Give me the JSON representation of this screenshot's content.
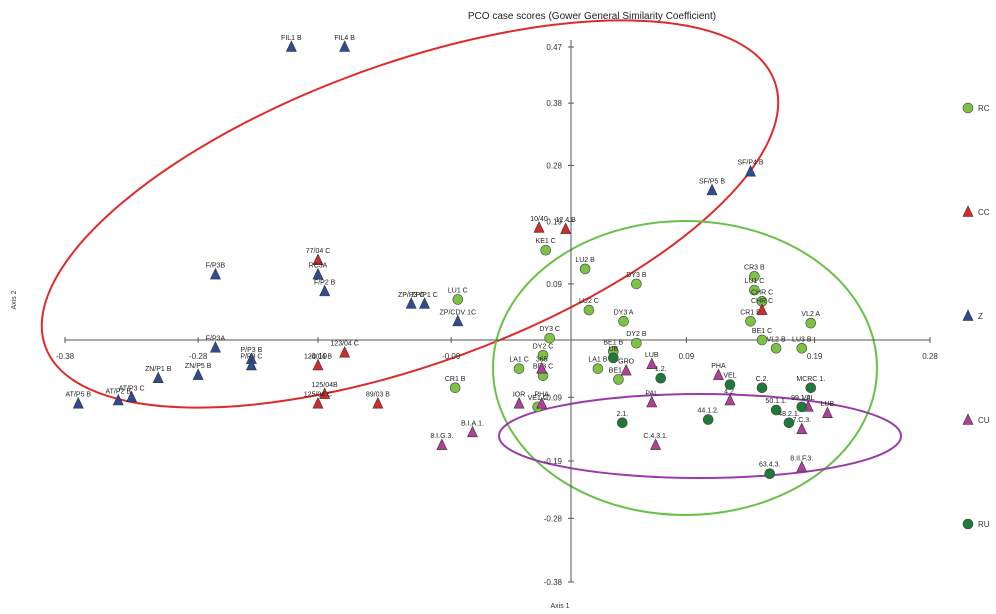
{
  "chart_data": {
    "type": "scatter",
    "title": "PCO case scores (Gower General Similarity Coefficient)",
    "xlabel": "Axis 1",
    "ylabel": "Axis 2",
    "xlim": [
      -0.38,
      0.28
    ],
    "ylim": [
      -0.38,
      0.47
    ],
    "x_ticks": [
      "-0.38",
      "-0.28",
      "-0.19",
      "-0.09",
      "0.09",
      "0.19",
      "0.28"
    ],
    "y_ticks": [
      "0.47",
      "0.38",
      "0.28",
      "0.19",
      "0.09",
      "-0.09",
      "-0.19",
      "-0.28",
      "-0.38"
    ],
    "grid": false,
    "legend_position": "right",
    "series": [
      {
        "name": "RC",
        "shape": "circle",
        "color": "#7cc243",
        "points": [
          {
            "x": -0.019,
            "y": 0.144,
            "label": "KE1 C"
          },
          {
            "x": 0.011,
            "y": 0.114,
            "label": "LU2 B"
          },
          {
            "x": 0.051,
            "y": 0.09,
            "label": "DY3 B"
          },
          {
            "x": 0.143,
            "y": 0.102,
            "label": "CR3 B"
          },
          {
            "x": 0.143,
            "y": 0.08,
            "label": "LU1 C"
          },
          {
            "x": 0.014,
            "y": 0.048,
            "label": "LU2 C"
          },
          {
            "x": 0.041,
            "y": 0.03,
            "label": "DY3 A"
          },
          {
            "x": 0.149,
            "y": 0.062,
            "label": "CHR C"
          },
          {
            "x": 0.14,
            "y": 0.03,
            "label": "CR1 B"
          },
          {
            "x": 0.187,
            "y": 0.027,
            "label": "VL2 A"
          },
          {
            "x": -0.016,
            "y": 0.003,
            "label": "DY3 C"
          },
          {
            "x": -0.021,
            "y": -0.024,
            "label": "DY2 C"
          },
          {
            "x": 0.051,
            "y": -0.005,
            "label": "DY2 B"
          },
          {
            "x": 0.033,
            "y": -0.018,
            "label": "BE1 B"
          },
          {
            "x": 0.149,
            "y": 0.0,
            "label": "BE1 C"
          },
          {
            "x": 0.16,
            "y": -0.013,
            "label": "VL2 B"
          },
          {
            "x": 0.18,
            "y": -0.013,
            "label": "LU3 B"
          },
          {
            "x": -0.039,
            "y": -0.045,
            "label": "LA1 C"
          },
          {
            "x": -0.021,
            "y": -0.056,
            "label": "BE3 C"
          },
          {
            "x": 0.037,
            "y": -0.062,
            "label": "BE1 A"
          },
          {
            "x": 0.021,
            "y": -0.045,
            "label": "LA1 B"
          },
          {
            "x": -0.025,
            "y": -0.105,
            "label": "VE1 C"
          },
          {
            "x": -0.087,
            "y": -0.075,
            "label": "CR1 B"
          },
          {
            "x": -0.085,
            "y": 0.065,
            "label": "LU1 C"
          }
        ]
      },
      {
        "name": "CC",
        "shape": "triangle",
        "color": "#d42a2a",
        "points": [
          {
            "x": -0.004,
            "y": 0.178,
            "label": "12.4 B"
          },
          {
            "x": -0.024,
            "y": 0.18,
            "label": "10/40"
          },
          {
            "x": 0.149,
            "y": 0.048,
            "label": "CHR C"
          },
          {
            "x": -0.19,
            "y": 0.128,
            "label": "77/04 C"
          },
          {
            "x": -0.17,
            "y": -0.02,
            "label": "123/04 C"
          },
          {
            "x": -0.19,
            "y": -0.04,
            "label": "124/04 B"
          },
          {
            "x": -0.185,
            "y": -0.085,
            "label": "125/04B"
          },
          {
            "x": -0.19,
            "y": -0.1,
            "label": "125/04 C"
          },
          {
            "x": -0.145,
            "y": -0.1,
            "label": "89/03 B"
          }
        ]
      },
      {
        "name": "Z",
        "shape": "triangle",
        "color": "#2e4b94",
        "points": [
          {
            "x": -0.21,
            "y": 0.47,
            "label": "FIL1 B"
          },
          {
            "x": -0.17,
            "y": 0.47,
            "label": "FIL4 B"
          },
          {
            "x": 0.11,
            "y": 0.24,
            "label": "SF/P5 B"
          },
          {
            "x": 0.14,
            "y": 0.27,
            "label": "SF/P4 B"
          },
          {
            "x": -0.267,
            "y": 0.105,
            "label": "F/P3B"
          },
          {
            "x": -0.19,
            "y": 0.105,
            "label": "RC3A"
          },
          {
            "x": -0.185,
            "y": 0.078,
            "label": "F/P2 B"
          },
          {
            "x": -0.12,
            "y": 0.058,
            "label": "ZP/P3 C"
          },
          {
            "x": -0.11,
            "y": 0.058,
            "label": "ZP/P1 C"
          },
          {
            "x": -0.085,
            "y": 0.03,
            "label": "ZP/CDV 1C"
          },
          {
            "x": -0.267,
            "y": -0.012,
            "label": "F/P3A"
          },
          {
            "x": -0.24,
            "y": -0.03,
            "label": "P/P3 B"
          },
          {
            "x": -0.24,
            "y": -0.04,
            "label": "P/P3 C"
          },
          {
            "x": -0.31,
            "y": -0.06,
            "label": "ZN/P1 B"
          },
          {
            "x": -0.28,
            "y": -0.055,
            "label": "ZN/P5 B"
          },
          {
            "x": -0.37,
            "y": -0.1,
            "label": "AT/P5 B"
          },
          {
            "x": -0.34,
            "y": -0.095,
            "label": "AT/P2 B"
          },
          {
            "x": -0.33,
            "y": -0.09,
            "label": "AT/P3 C"
          }
        ]
      },
      {
        "name": "CU",
        "shape": "triangle",
        "color": "#b0419b",
        "points": [
          {
            "x": -0.022,
            "y": -0.045,
            "label": "365"
          },
          {
            "x": 0.043,
            "y": -0.048,
            "label": "GRO"
          },
          {
            "x": 0.063,
            "y": -0.038,
            "label": "LUB"
          },
          {
            "x": -0.039,
            "y": -0.1,
            "label": "IOR"
          },
          {
            "x": -0.022,
            "y": -0.1,
            "label": "PHA"
          },
          {
            "x": 0.063,
            "y": -0.098,
            "label": "PAL"
          },
          {
            "x": 0.115,
            "y": -0.055,
            "label": "PHA"
          },
          {
            "x": -0.074,
            "y": -0.145,
            "label": "B.I.A.1."
          },
          {
            "x": -0.097,
            "y": -0.165,
            "label": "8.I.G.3."
          },
          {
            "x": 0.066,
            "y": -0.165,
            "label": "C.4.3.1."
          },
          {
            "x": 0.18,
            "y": -0.14,
            "label": "7.C.3."
          },
          {
            "x": 0.18,
            "y": -0.2,
            "label": "8.II.F.3."
          },
          {
            "x": 0.185,
            "y": -0.105,
            "label": "VAL"
          },
          {
            "x": 0.2,
            "y": -0.115,
            "label": "LUB"
          },
          {
            "x": 0.124,
            "y": -0.095,
            "label": "4.2."
          }
        ]
      },
      {
        "name": "RU",
        "shape": "circle",
        "color": "#1f7a3a",
        "points": [
          {
            "x": 0.033,
            "y": -0.028,
            "label": "UB"
          },
          {
            "x": 0.07,
            "y": -0.06,
            "label": "1.2."
          },
          {
            "x": 0.124,
            "y": -0.07,
            "label": "VEL"
          },
          {
            "x": 0.149,
            "y": -0.075,
            "label": "C.2."
          },
          {
            "x": 0.16,
            "y": -0.11,
            "label": "50.1.1."
          },
          {
            "x": 0.17,
            "y": -0.13,
            "label": "48.2.1."
          },
          {
            "x": 0.155,
            "y": -0.21,
            "label": "63.4.3."
          },
          {
            "x": 0.187,
            "y": -0.075,
            "label": "MCRC 1."
          },
          {
            "x": 0.18,
            "y": -0.105,
            "label": "99.1.2."
          },
          {
            "x": 0.04,
            "y": -0.13,
            "label": "2.1."
          },
          {
            "x": 0.107,
            "y": -0.125,
            "label": "44.1.2."
          }
        ]
      }
    ]
  },
  "legend": {
    "items": [
      {
        "name": "RC",
        "shape": "circle",
        "color": "#7cc243"
      },
      {
        "name": "CC",
        "shape": "triangle",
        "color": "#d42a2a"
      },
      {
        "name": "Z",
        "shape": "triangle",
        "color": "#2e4b94"
      },
      {
        "name": "CU",
        "shape": "triangle",
        "color": "#b0419b"
      },
      {
        "name": "RU",
        "shape": "circle",
        "color": "#1f7a3a"
      }
    ]
  },
  "ellipses": [
    {
      "group": "Z",
      "color": "#e02a2a"
    },
    {
      "group": "RC",
      "color": "#69c04a"
    },
    {
      "group": "CU",
      "color": "#9a3aa8"
    }
  ]
}
